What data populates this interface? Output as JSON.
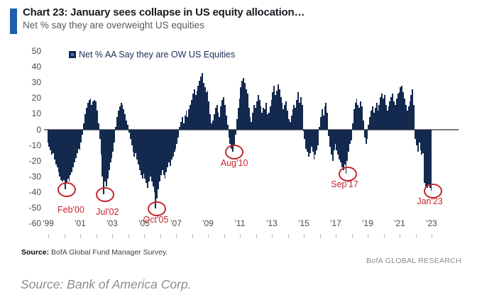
{
  "chart": {
    "title": "Chart 23: January sees collapse in US equity allocation…",
    "subtitle": "Net % say they are overweight US equities",
    "legend_label": "Net % AA Say they are OW US Equities",
    "source_label": "Source:",
    "source_text": "BofA Global Fund Manager Survey.",
    "brand": "BofA GLOBAL RESEARCH"
  },
  "caption": "Source: Bank of America Corp.",
  "colors": {
    "bar": "#14294e",
    "accent_blue": "#1f5fad",
    "annotation_red": "#c5252d",
    "axis_gray": "#7d7d7d",
    "tick_text": "#4a4a4c"
  },
  "chart_data": {
    "type": "bar",
    "title": "Chart 23: January sees collapse in US equity allocation…",
    "subtitle": "Net % say they are overweight US equities",
    "ylabel": "Net % AA Say they are OW US Equities",
    "ylim": [
      -60,
      50
    ],
    "grid": false,
    "legend_position": "top-left",
    "frequency": "monthly",
    "start": "1999-01",
    "end": "2023-01",
    "y_ticks": [
      50,
      40,
      30,
      20,
      10,
      0,
      -10,
      -20,
      -30,
      -40,
      -50,
      -60
    ],
    "x_ticks": [
      "'99",
      "'01",
      "'03",
      "'05",
      "'07",
      "'09",
      "'11",
      "'13",
      "'15",
      "'17",
      "'19",
      "'21",
      "'23"
    ],
    "series": [
      {
        "name": "Net % AA Say they are OW US Equities",
        "values": [
          -8,
          -11,
          -13,
          -16,
          -15,
          -19,
          -22,
          -24,
          -27,
          -30,
          -32,
          -33,
          -32,
          -38,
          -34,
          -31,
          -33,
          -29,
          -27,
          -24,
          -21,
          -18,
          -15,
          -12,
          -13,
          -8,
          -3,
          4,
          10,
          14,
          17,
          19,
          20,
          16,
          18,
          19,
          18,
          12,
          4,
          -6,
          -16,
          -30,
          -41,
          -33,
          -36,
          -31,
          -26,
          -21,
          -18,
          -14,
          -8,
          2,
          8,
          12,
          15,
          17,
          16,
          13,
          10,
          6,
          3,
          -2,
          -6,
          -10,
          -14,
          -17,
          -15,
          -19,
          -22,
          -26,
          -29,
          -31,
          -28,
          -31,
          -34,
          -37,
          -33,
          -30,
          -33,
          -36,
          -40,
          -50,
          -44,
          -38,
          -33,
          -29,
          -26,
          -29,
          -31,
          -27,
          -24,
          -21,
          -23,
          -19,
          -17,
          -14,
          -12,
          -9,
          -5,
          2,
          5,
          8,
          4,
          9,
          12,
          8,
          13,
          16,
          19,
          23,
          26,
          22,
          25,
          28,
          31,
          34,
          36,
          30,
          27,
          24,
          25,
          18,
          10,
          4,
          6,
          10,
          14,
          16,
          11,
          8,
          15,
          19,
          21,
          16,
          9,
          3,
          -5,
          -9,
          -12,
          -14,
          -10,
          -3,
          7,
          14,
          20,
          27,
          31,
          33,
          30,
          26,
          23,
          14,
          8,
          5,
          11,
          16,
          14,
          18,
          22,
          19,
          15,
          11,
          14,
          13,
          17,
          10,
          11,
          15,
          19,
          24,
          28,
          22,
          25,
          29,
          26,
          21,
          17,
          13,
          16,
          18,
          12,
          7,
          5,
          9,
          13,
          16,
          14,
          19,
          24,
          17,
          21,
          16,
          -1,
          -6,
          -12,
          -14,
          -17,
          -15,
          -11,
          -14,
          -19,
          -16,
          -13,
          -10,
          2,
          8,
          13,
          9,
          15,
          17,
          11,
          -4,
          -11,
          -16,
          -20,
          -13,
          -9,
          -13,
          -16,
          -19,
          -21,
          -24,
          -26,
          -22,
          -28,
          -20,
          -14,
          -9,
          -7,
          4,
          13,
          17,
          20,
          16,
          14,
          18,
          15,
          6,
          -5,
          -9,
          -6,
          3,
          8,
          12,
          15,
          11,
          14,
          17,
          12,
          16,
          21,
          23,
          20,
          22,
          16,
          12,
          15,
          18,
          21,
          23,
          18,
          16,
          20,
          23,
          24,
          27,
          28,
          24,
          20,
          16,
          12,
          15,
          18,
          22,
          26,
          16,
          -6,
          -10,
          -14,
          -8,
          -13,
          -16,
          -15,
          -34,
          -36,
          -37,
          -35,
          -37,
          -39
        ]
      }
    ],
    "annotations": [
      {
        "label": "Feb'00",
        "index": 13,
        "lx": 8,
        "ly": 22
      },
      {
        "label": "Jul'02",
        "index": 42,
        "lx": 5,
        "ly": 18
      },
      {
        "label": "Oct'05",
        "index": 81,
        "lx": 0,
        "ly": 9
      },
      {
        "label": "Aug'10",
        "index": 139,
        "lx": 2,
        "ly": 9
      },
      {
        "label": "Sep'17",
        "index": 224,
        "lx": -2,
        "ly": 8
      },
      {
        "label": "Jan'23",
        "index": 288,
        "lx": -2,
        "ly": 8
      }
    ]
  }
}
